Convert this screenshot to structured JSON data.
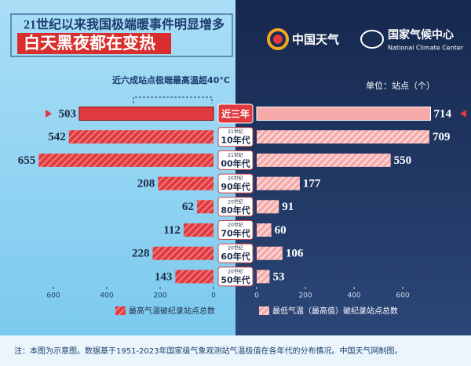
{
  "header": {
    "title": "21世纪以来我国极端暖事件明显增多",
    "subtitle": "白天黑夜都在变热",
    "logo_1": "中国天气",
    "logo_2": "国家气候中心",
    "logo_2_en": "National Climate Center"
  },
  "chart_data": {
    "type": "butterfly",
    "annotation": "近六成站点极端最高温超40°C",
    "unit_label": "单位：站点（个）",
    "categories": [
      "近三年",
      "10年代",
      "00年代",
      "90年代",
      "80年代",
      "70年代",
      "60年代",
      "50年代"
    ],
    "category_centuries": [
      null,
      "21世纪",
      "21世纪",
      "20世纪",
      "20世纪",
      "20世纪",
      "20世纪",
      "20世纪"
    ],
    "series": [
      {
        "name": "最高气温破纪录站点总数",
        "color": "#e0393e",
        "values": [
          503,
          542,
          655,
          208,
          62,
          112,
          228,
          143
        ]
      },
      {
        "name": "最低气温（最高值）破纪录站点总数",
        "color": "#f7aaaa",
        "axis": "x2",
        "values": [
          714,
          709,
          550,
          177,
          91,
          60,
          106,
          53
        ]
      }
    ],
    "xlim": [
      0,
      800
    ],
    "xticks": [
      0,
      200,
      400,
      600
    ],
    "x2lim": [
      0,
      880
    ],
    "x2ticks": [
      0,
      200,
      400,
      600
    ]
  },
  "note": "注：本图为示意图。数据基于1951-2023年国家级气象观测站气温极值在各年代的分布情况。中国天气网制图。"
}
